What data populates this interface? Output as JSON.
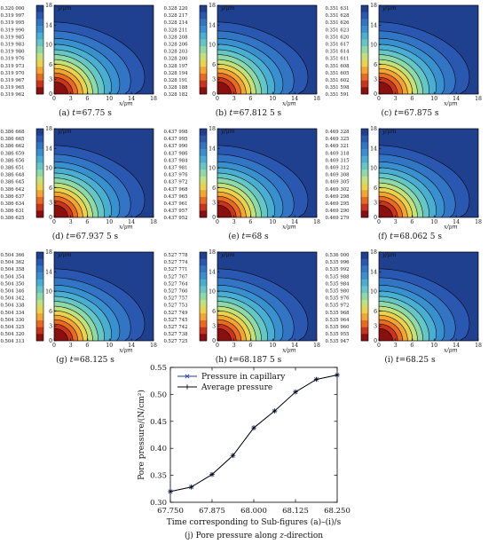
{
  "colors": {
    "background": "#1f3f8f",
    "line": "#000000",
    "colormap": [
      "#1f3f8f",
      "#2a58b0",
      "#3275c4",
      "#3990cf",
      "#49aed1",
      "#66c6c6",
      "#8fd8a8",
      "#c2e07c",
      "#ead24f",
      "#f3a534",
      "#e86b22",
      "#c9341a",
      "#8a1010"
    ]
  },
  "panels": [
    {
      "caption_prefix": "(a) ",
      "caption_var": "t",
      "caption_rest": "=67.75 s",
      "y_axis_label": "y/μm",
      "x_axis_label": "x/μm",
      "colorbar_labels": [
        "0.320 000",
        "0.319 997",
        "0.319 995",
        "0.319 990",
        "0.319 985",
        "0.319 983",
        "0.319 980",
        "0.319 976",
        "0.319 973",
        "0.319 970",
        "0.319 967",
        "0.319 965",
        "0.319 962"
      ]
    },
    {
      "caption_prefix": "(b) ",
      "caption_var": "t",
      "caption_rest": "=67.812 5 s",
      "y_axis_label": "y/μm",
      "x_axis_label": "x/μm",
      "colorbar_labels": [
        "0.328 220",
        "0.328 217",
        "0.328 214",
        "0.328 211",
        "0.328 208",
        "0.328 206",
        "0.328 203",
        "0.328 200",
        "0.328 197",
        "0.328 194",
        "0.328 191",
        "0.328 188",
        "0.328 182"
      ]
    },
    {
      "caption_prefix": "(c) ",
      "caption_var": "t",
      "caption_rest": "=67.875 s",
      "y_axis_label": "y/μm",
      "x_axis_label": "x/μm",
      "colorbar_labels": [
        "0.351 631",
        "0.351 628",
        "0.351 626",
        "0.351 623",
        "0.351 620",
        "0.351 617",
        "0.351 614",
        "0.351 611",
        "0.351 608",
        "0.351 605",
        "0.351 602",
        "0.351 598",
        "0.351 591"
      ]
    },
    {
      "caption_prefix": "(d) ",
      "caption_var": "t",
      "caption_rest": "=67.937 5 s",
      "y_axis_label": "y/μm",
      "x_axis_label": "x/μm",
      "colorbar_labels": [
        "0.386 668",
        "0.386 665",
        "0.386 662",
        "0.386 659",
        "0.386 656",
        "0.386 651",
        "0.386 648",
        "0.386 645",
        "0.386 642",
        "0.386 637",
        "0.386 634",
        "0.386 631",
        "0.386 625"
      ]
    },
    {
      "caption_prefix": "(e) ",
      "caption_var": "t",
      "caption_rest": "=68 s",
      "y_axis_label": "y/μm",
      "x_axis_label": "x/μm",
      "colorbar_labels": [
        "0.437 998",
        "0.437 995",
        "0.437 990",
        "0.437 986",
        "0.437 984",
        "0.437 981",
        "0.437 976",
        "0.437 972",
        "0.437 968",
        "0.437 965",
        "0.437 961",
        "0.437 957",
        "0.437 952"
      ]
    },
    {
      "caption_prefix": "(f) ",
      "caption_var": "t",
      "caption_rest": "=68.062 5 s",
      "y_axis_label": "y/μm",
      "x_axis_label": "x/μm",
      "colorbar_labels": [
        "0.469 328",
        "0.469 325",
        "0.469 321",
        "0.469 318",
        "0.469 315",
        "0.469 312",
        "0.469 308",
        "0.469 305",
        "0.469 302",
        "0.469 298",
        "0.469 295",
        "0.469 290",
        "0.469 279"
      ]
    },
    {
      "caption_prefix": "(g) ",
      "caption_var": "t",
      "caption_rest": "=68.125 s",
      "y_axis_label": "y/μm",
      "x_axis_label": "x/μm",
      "colorbar_labels": [
        "0.504 366",
        "0.504 362",
        "0.504 358",
        "0.504 354",
        "0.504 350",
        "0.504 346",
        "0.504 342",
        "0.504 338",
        "0.504 334",
        "0.504 330",
        "0.504 325",
        "0.504 320",
        "0.504 313"
      ]
    },
    {
      "caption_prefix": "(h) ",
      "caption_var": "t",
      "caption_rest": "=68.187 5 s",
      "y_axis_label": "y/μm",
      "x_axis_label": "x/μm",
      "colorbar_labels": [
        "0.527 778",
        "0.527 774",
        "0.527 771",
        "0.527 767",
        "0.527 764",
        "0.527 760",
        "0.527 757",
        "0.527 753",
        "0.527 749",
        "0.527 745",
        "0.527 742",
        "0.527 738",
        "0.527 725"
      ]
    },
    {
      "caption_prefix": "(i) ",
      "caption_var": "t",
      "caption_rest": "=68.25 s",
      "y_axis_label": "y/μm",
      "x_axis_label": "x/μm",
      "colorbar_labels": [
        "0.536 000",
        "0.535 996",
        "0.535 992",
        "0.535 988",
        "0.535 984",
        "0.535 980",
        "0.535 976",
        "0.535 972",
        "0.535 968",
        "0.535 964",
        "0.535 960",
        "0.535 955",
        "0.535 947"
      ]
    }
  ],
  "chart_data": [
    {
      "type": "heatmap",
      "panels": "a-i",
      "x_ticks": [
        "0",
        "3",
        "6",
        "10",
        "14",
        "18"
      ],
      "y_ticks": [
        "0",
        "3",
        "6",
        "10",
        "14",
        "18"
      ],
      "xlim": [
        0,
        18
      ],
      "ylim": [
        0,
        18
      ],
      "xlabel": "x/μm",
      "ylabel": "y/μm",
      "colorbar_levels": 13,
      "contour_radii": [
        2.5,
        3.4,
        4.3,
        5.2,
        6.1,
        7.0,
        8.0,
        9.0,
        10.1,
        11.3,
        12.8,
        14.6
      ]
    },
    {
      "type": "line",
      "caption_prefix": "(j) Pore pressure along ",
      "caption_var": "z",
      "caption_rest": "-direction",
      "xlabel": "Time corresponding to Sub-figures (a)–(i)/s",
      "ylabel": "Pore pressure/(N/cm²)",
      "xlim": [
        67.75,
        68.25
      ],
      "ylim": [
        0.3,
        0.55
      ],
      "x_ticks": [
        "67.750",
        "67.875",
        "68.000",
        "68.125",
        "68.250"
      ],
      "y_ticks": [
        "0.30",
        "0.35",
        "0.40",
        "0.45",
        "0.50",
        "0.55"
      ],
      "legend_position": "top-left",
      "x": [
        67.75,
        67.8125,
        67.875,
        67.9375,
        68.0,
        68.0625,
        68.125,
        68.1875,
        68.25
      ],
      "series": [
        {
          "name": "Pressure in capillary",
          "marker": "x",
          "values": [
            0.32,
            0.3282,
            0.3516,
            0.3867,
            0.438,
            0.4693,
            0.5044,
            0.5278,
            0.536
          ]
        },
        {
          "name": "Average pressure",
          "marker": "+",
          "values": [
            0.32,
            0.3282,
            0.3516,
            0.3867,
            0.438,
            0.4693,
            0.5044,
            0.5278,
            0.536
          ]
        }
      ]
    }
  ]
}
